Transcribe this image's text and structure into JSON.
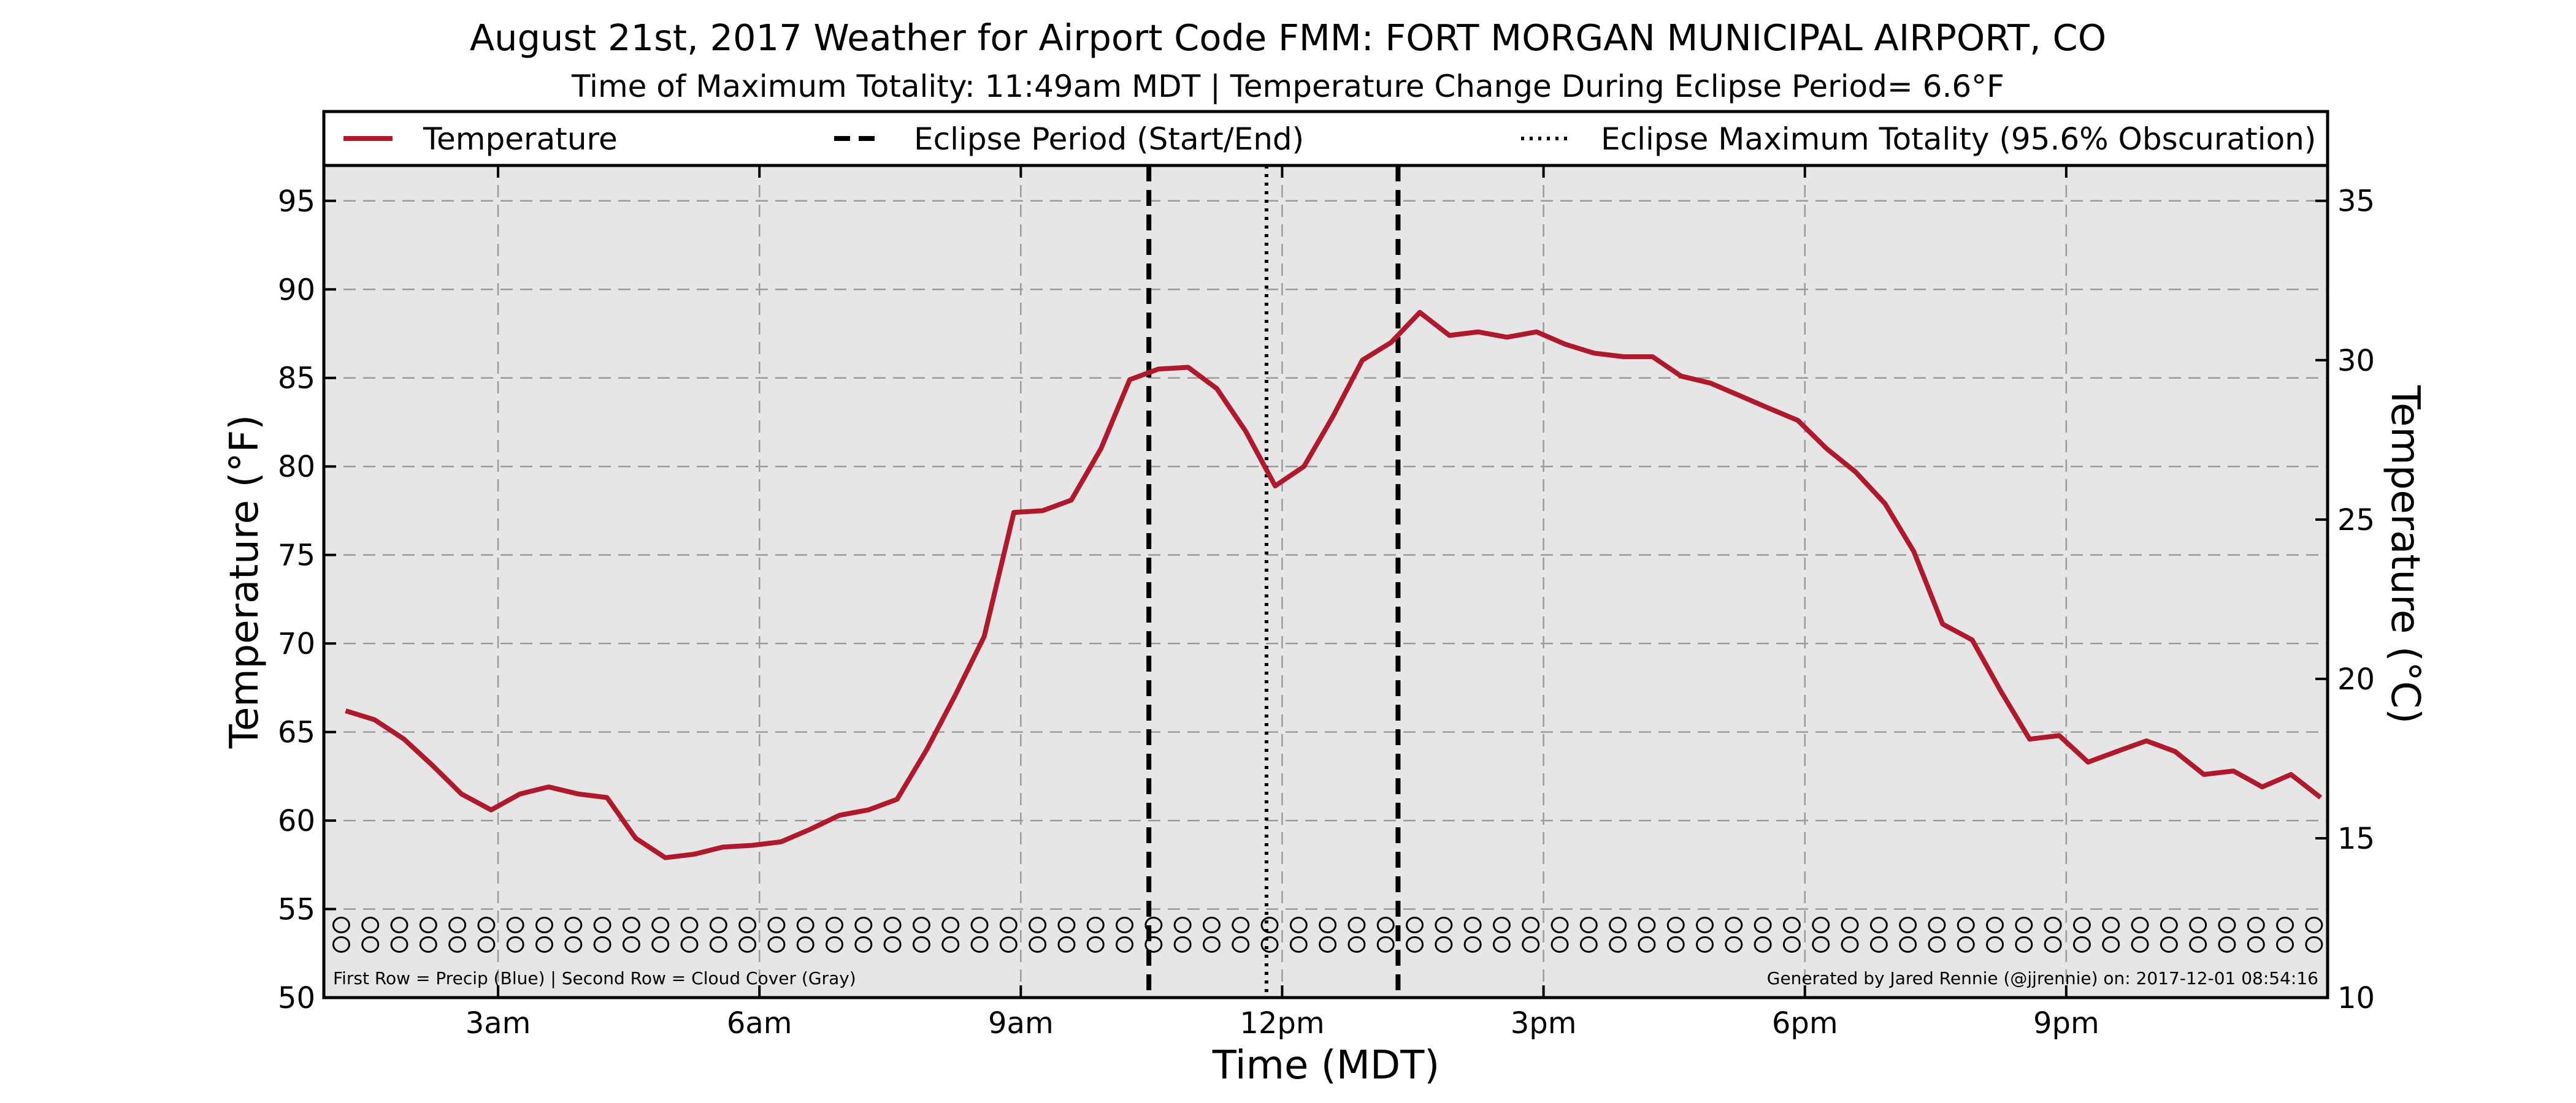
{
  "chart_data": {
    "type": "line",
    "title": "August 21st, 2017 Weather for Airport Code FMM: FORT MORGAN MUNICIPAL AIRPORT, CO",
    "subtitle": "Time of Maximum Totality: 11:49am MDT | Temperature Change During Eclipse Period= 6.6°F",
    "xlabel": "Time (MDT)",
    "ylabel": "Temperature (°F)",
    "ylabel_right": "Temperature (°C)",
    "xlim": [
      1.0,
      24.0
    ],
    "ylim": [
      50,
      97
    ],
    "ylim_right": [
      10,
      36.11
    ],
    "x_ticks": [
      3,
      6,
      9,
      12,
      15,
      18,
      21
    ],
    "x_tick_labels": [
      "3am",
      "6am",
      "9am",
      "12pm",
      "3pm",
      "6pm",
      "9pm"
    ],
    "y_ticks": [
      50,
      55,
      60,
      65,
      70,
      75,
      80,
      85,
      90,
      95
    ],
    "y_tick_labels": [
      "50",
      "55",
      "60",
      "65",
      "70",
      "75",
      "80",
      "85",
      "90",
      "95"
    ],
    "y_right_ticks": [
      10,
      15,
      20,
      25,
      30,
      35
    ],
    "y_right_tick_labels": [
      "10",
      "15",
      "20",
      "25",
      "30",
      "35"
    ],
    "grid": true,
    "legend_position": "top",
    "legend": [
      {
        "label": "Temperature",
        "style": "solid",
        "color": "#b2182b"
      },
      {
        "label": "Eclipse Period (Start/End)",
        "style": "dashed",
        "color": "#000000"
      },
      {
        "label": "Eclipse Maximum Totality (95.6% Obscuration)",
        "style": "dotted",
        "color": "#000000"
      }
    ],
    "eclipse_start": 10.47,
    "eclipse_end": 13.33,
    "eclipse_max": 11.82,
    "series": [
      {
        "name": "Temperature",
        "color": "#b2182b",
        "x": [
          1.25,
          1.58,
          1.92,
          2.25,
          2.58,
          2.92,
          3.25,
          3.58,
          3.92,
          4.25,
          4.58,
          4.92,
          5.25,
          5.58,
          5.92,
          6.25,
          6.58,
          6.92,
          7.25,
          7.58,
          7.92,
          8.25,
          8.58,
          8.92,
          9.25,
          9.58,
          9.92,
          10.25,
          10.58,
          10.92,
          11.25,
          11.58,
          11.92,
          12.25,
          12.58,
          12.92,
          13.25,
          13.58,
          13.92,
          14.25,
          14.58,
          14.92,
          15.25,
          15.58,
          15.92,
          16.25,
          16.58,
          16.92,
          17.25,
          17.58,
          17.92,
          18.25,
          18.58,
          18.92,
          19.25,
          19.58,
          19.92,
          20.25,
          20.58,
          20.92,
          21.25,
          21.58,
          21.92,
          22.25,
          22.58,
          22.92,
          23.25,
          23.58,
          23.92
        ],
        "y": [
          66.2,
          65.7,
          64.6,
          63.1,
          61.5,
          60.6,
          61.5,
          61.9,
          61.5,
          61.3,
          59.0,
          57.9,
          58.1,
          58.5,
          58.6,
          58.8,
          59.5,
          60.3,
          60.6,
          61.2,
          64.0,
          67.1,
          70.4,
          77.4,
          77.5,
          78.1,
          81.0,
          84.9,
          85.5,
          85.6,
          84.4,
          82.0,
          78.9,
          80.0,
          82.8,
          86.0,
          87.0,
          88.7,
          87.4,
          87.6,
          87.3,
          87.6,
          86.9,
          86.4,
          86.2,
          86.2,
          85.1,
          84.7,
          84.0,
          83.3,
          82.6,
          81.0,
          79.7,
          77.9,
          75.2,
          71.1,
          70.2,
          67.3,
          64.6,
          64.8,
          63.3,
          63.9,
          64.5,
          63.9,
          62.6,
          62.8,
          61.9,
          62.6,
          61.3
        ]
      }
    ],
    "marker_rows": {
      "interval_hours": 0.333,
      "precip_row_y": 54.1,
      "cloud_row_y": 53.0,
      "precip_values": [],
      "cloud_values": []
    },
    "footnote_left": "First Row = Precip (Blue) | Second Row = Cloud Cover (Gray)",
    "footnote_right": "Generated by Jared Rennie (@jjrennie) on: 2017-12-01 08:54:16"
  }
}
